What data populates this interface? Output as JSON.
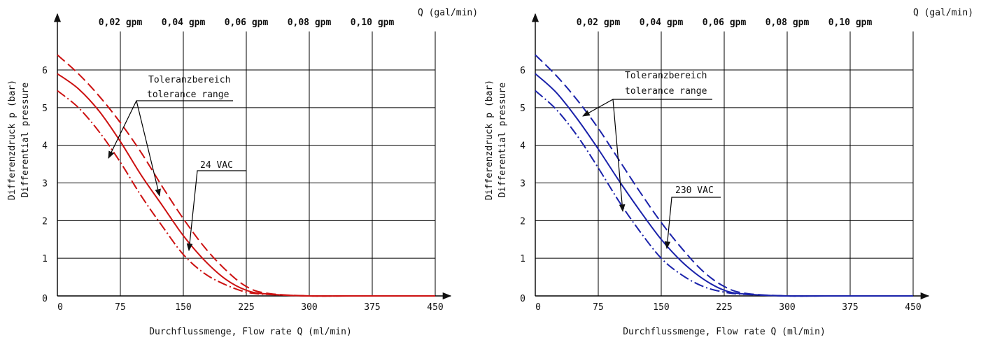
{
  "chart_data": [
    {
      "type": "line",
      "color": "#cc1111",
      "xlabel": "Durchflussmenge, Flow rate Q (ml/min)",
      "ylabel": [
        "Differenzdruck p (bar)",
        "Differential pressure"
      ],
      "x2label": "Q (gal/min)",
      "xlim": [
        0,
        450
      ],
      "ylim": [
        0,
        7
      ],
      "xticks": [
        0,
        75,
        150,
        225,
        300,
        375,
        450
      ],
      "yticks": [
        0,
        1,
        2,
        3,
        4,
        5,
        6
      ],
      "x2ticks": [
        {
          "x": 75,
          "label": "0,02 gpm"
        },
        {
          "x": 150,
          "label": "0,04 gpm"
        },
        {
          "x": 225,
          "label": "0,06 gpm"
        },
        {
          "x": 300,
          "label": "0,08 gpm"
        },
        {
          "x": 375,
          "label": "0,10 gpm"
        }
      ],
      "grid": true,
      "series": [
        {
          "role": "nominal",
          "style": "solid",
          "x": [
            0,
            25,
            50,
            75,
            100,
            125,
            150,
            175,
            200,
            225,
            250,
            300,
            350,
            450
          ],
          "y": [
            5.9,
            5.5,
            4.9,
            4.1,
            3.2,
            2.4,
            1.6,
            0.95,
            0.45,
            0.15,
            0.05,
            0.0,
            0.0,
            0.0
          ]
        },
        {
          "role": "tolerance-upper",
          "style": "dash",
          "x": [
            0,
            25,
            50,
            75,
            100,
            125,
            150,
            175,
            200,
            225,
            250,
            300,
            350,
            450
          ],
          "y": [
            6.4,
            5.9,
            5.3,
            4.6,
            3.8,
            2.9,
            2.05,
            1.3,
            0.7,
            0.25,
            0.07,
            0.0,
            0.0,
            0.0
          ]
        },
        {
          "role": "tolerance-lower",
          "style": "dashdot",
          "x": [
            0,
            25,
            50,
            75,
            100,
            125,
            150,
            175,
            200,
            225,
            250,
            300,
            350,
            450
          ],
          "y": [
            5.45,
            5.0,
            4.35,
            3.55,
            2.65,
            1.85,
            1.1,
            0.6,
            0.3,
            0.1,
            0.04,
            0.0,
            0.0,
            0.0
          ]
        }
      ],
      "annotations": {
        "tolerance_de": "Toleranzbereich",
        "tolerance_en": "tolerance range",
        "voltage": "24 VAC"
      }
    },
    {
      "type": "line",
      "color": "#1a22aa",
      "xlabel": "Durchflussmenge, Flow rate Q (ml/min)",
      "ylabel": [
        "Differenzdruck p (bar)",
        "Differential pressure"
      ],
      "x2label": "Q (gal/min)",
      "xlim": [
        0,
        450
      ],
      "ylim": [
        0,
        7
      ],
      "xticks": [
        0,
        75,
        150,
        225,
        300,
        375,
        450
      ],
      "yticks": [
        0,
        1,
        2,
        3,
        4,
        5,
        6
      ],
      "x2ticks": [
        {
          "x": 75,
          "label": "0,02 gpm"
        },
        {
          "x": 150,
          "label": "0,04 gpm"
        },
        {
          "x": 225,
          "label": "0,06 gpm"
        },
        {
          "x": 300,
          "label": "0,08 gpm"
        },
        {
          "x": 375,
          "label": "0,10 gpm"
        }
      ],
      "grid": true,
      "series": [
        {
          "role": "nominal",
          "style": "solid",
          "x": [
            0,
            25,
            50,
            75,
            100,
            125,
            150,
            175,
            200,
            225,
            250,
            300,
            350,
            450
          ],
          "y": [
            5.9,
            5.4,
            4.7,
            3.9,
            3.05,
            2.25,
            1.5,
            0.9,
            0.45,
            0.15,
            0.05,
            0.0,
            0.0,
            0.0
          ]
        },
        {
          "role": "tolerance-upper",
          "style": "dash",
          "x": [
            0,
            25,
            50,
            75,
            100,
            125,
            150,
            175,
            200,
            225,
            250,
            300,
            350,
            450
          ],
          "y": [
            6.4,
            5.85,
            5.2,
            4.45,
            3.6,
            2.75,
            1.95,
            1.25,
            0.65,
            0.25,
            0.07,
            0.0,
            0.0,
            0.0
          ]
        },
        {
          "role": "tolerance-lower",
          "style": "dashdot",
          "x": [
            0,
            25,
            50,
            75,
            100,
            125,
            150,
            175,
            200,
            225,
            250,
            300,
            350,
            450
          ],
          "y": [
            5.45,
            4.95,
            4.25,
            3.4,
            2.5,
            1.7,
            1.0,
            0.55,
            0.25,
            0.1,
            0.04,
            0.0,
            0.0,
            0.0
          ]
        }
      ],
      "annotations": {
        "tolerance_de": "Toleranzbereich",
        "tolerance_en": "tolerance range",
        "voltage": "230 VAC"
      }
    }
  ]
}
